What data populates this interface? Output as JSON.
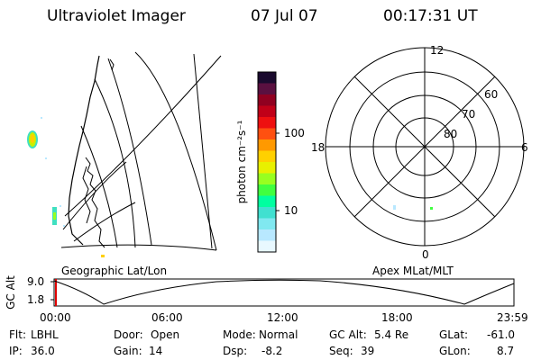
{
  "header": {
    "title": "Ultraviolet Imager",
    "date": "07 Jul 07",
    "time": "00:17:31 UT"
  },
  "geo_panel": {
    "label": "Geographic Lat/Lon"
  },
  "colorbar": {
    "unit_label": "photon cm⁻²s⁻¹",
    "ticks": [
      "100",
      "10"
    ],
    "colors": [
      "#1a0a2e",
      "#5a1040",
      "#900020",
      "#c00018",
      "#ee1010",
      "#ff5010",
      "#ff9900",
      "#ffd000",
      "#e8f000",
      "#98ff20",
      "#40ff40",
      "#00ffa0",
      "#40e0d0",
      "#80e8f0",
      "#b8e8ff",
      "#e8f8ff"
    ]
  },
  "polar_panel": {
    "label": "Apex MLat/MLT",
    "mlt_labels": {
      "top": "12",
      "right": "6",
      "bottom": "0",
      "left": "18"
    },
    "lat_labels": [
      "60",
      "70",
      "80"
    ]
  },
  "timeline": {
    "ylabel": "GC Alt",
    "yticks": [
      "9.0",
      "1.8"
    ],
    "xticks": [
      "00:00",
      "06:00",
      "12:00",
      "18:00",
      "23:59"
    ]
  },
  "info": {
    "row1": [
      {
        "label": "Flt:",
        "value": "LBHL"
      },
      {
        "label": "Door:",
        "value": "Open"
      },
      {
        "label": "Mode:",
        "value": "Normal"
      },
      {
        "label": "GC Alt:",
        "value": "5.4 Re"
      },
      {
        "label": "GLat:",
        "value": "-61.0"
      }
    ],
    "row2": [
      {
        "label": "IP:",
        "value": "36.0"
      },
      {
        "label": "Gain:",
        "value": "14"
      },
      {
        "label": "Dsp:",
        "value": "-8.2"
      },
      {
        "label": "Seq:",
        "value": "39"
      },
      {
        "label": "GLon:",
        "value": "8.7"
      }
    ]
  }
}
